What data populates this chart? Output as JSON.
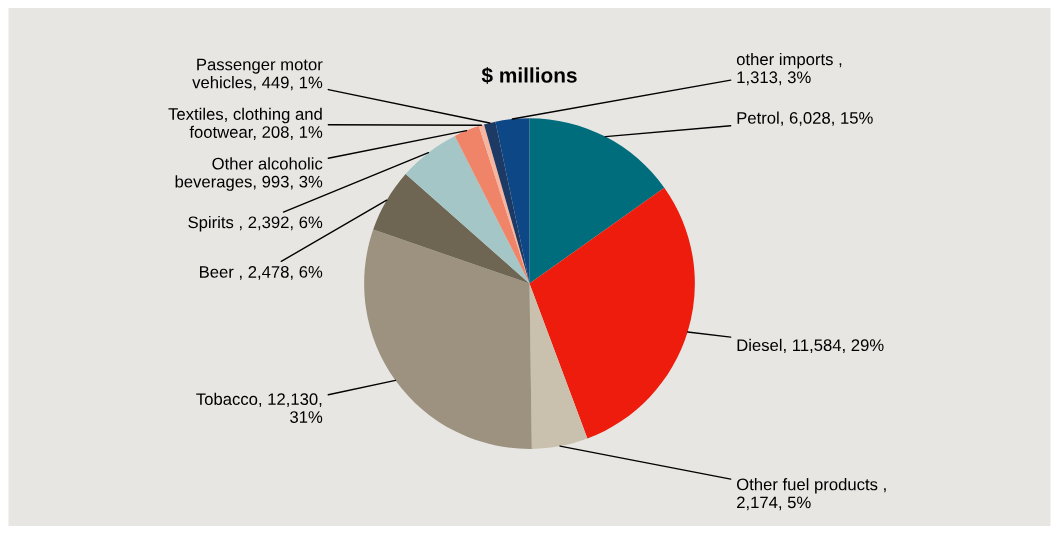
{
  "chart_data": {
    "type": "pie",
    "title": "$ millions",
    "categories": [
      "Petrol",
      "Diesel",
      "Other fuel products ",
      "Tobacco",
      "Beer ",
      "Spirits ",
      "Other alcoholic\nbeverages",
      "Textiles, clothing and\nfootwear",
      "Passenger motor\nvehicles",
      "other imports "
    ],
    "values": [
      6028,
      11584,
      2174,
      12130,
      2478,
      2392,
      993,
      208,
      449,
      1313
    ],
    "value_labels": [
      "6,028, 15%",
      "11,584, 29%",
      ",\n2,174, 5%",
      "12,130,\n31%",
      "2,478, 6%",
      "2,392, 6%",
      "993, 3%",
      "208, 1%",
      "449, 1%",
      ",\n1,313, 3%"
    ],
    "colors": [
      "#006d7c",
      "#ee1c0c",
      "#c9c0ad",
      "#9d9280",
      "#6e6553",
      "#a4c6c6",
      "#f08468",
      "#f5b5a0",
      "#1c3a63",
      "#0d4785"
    ]
  }
}
